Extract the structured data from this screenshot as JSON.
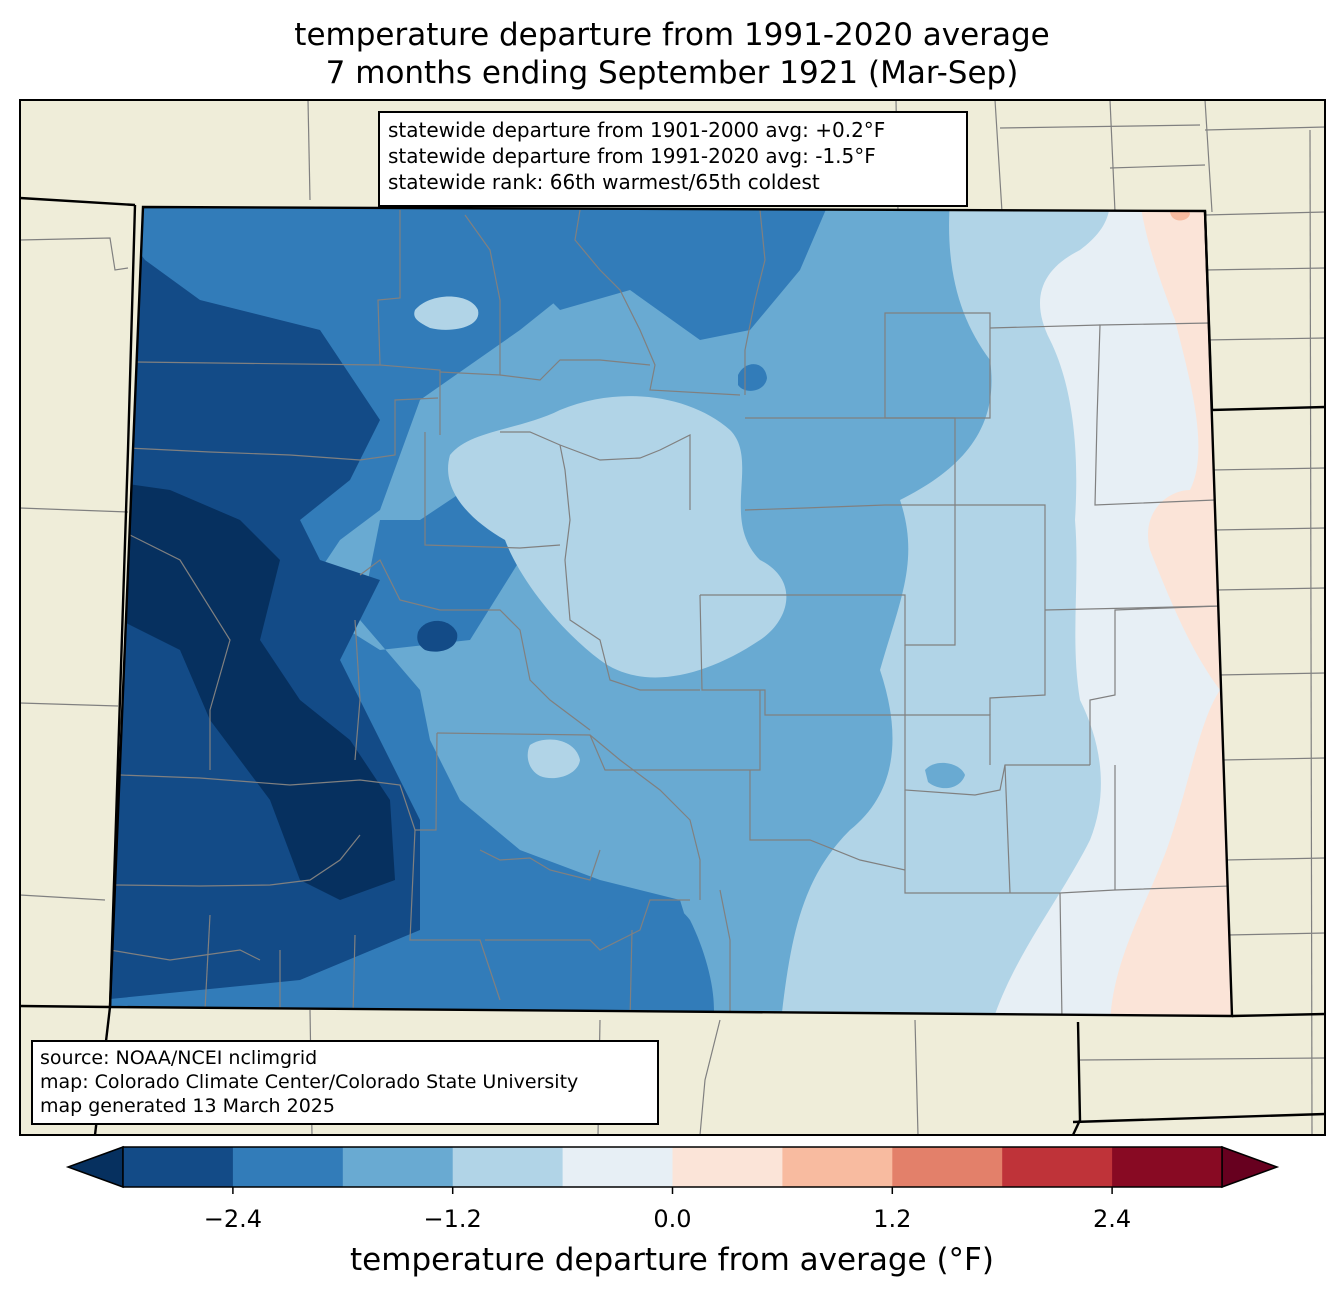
{
  "title": {
    "line1": "temperature departure from 1991-2020 average",
    "line2": "7 months ending September 1921 (Mar-Sep)"
  },
  "stats_box": {
    "line1": "statewide departure from 1901-2000 avg: +0.2°F",
    "line2": "statewide departure from 1991-2020 avg: -1.5°F",
    "line3": "statewide rank: 66th warmest/65th coldest"
  },
  "source_box": {
    "line1": "source: NOAA/NCEI nclimgrid",
    "line2": "map: Colorado Climate Center/Colorado State University",
    "line3": "map generated 13 March 2025"
  },
  "colorbar": {
    "label": "temperature departure from average (°F)",
    "bounds": [
      -3.0,
      -2.4,
      -1.8,
      -1.2,
      -0.6,
      0.0,
      0.6,
      1.2,
      1.8,
      2.4,
      3.0
    ],
    "colors": [
      "#134b87",
      "#327cb9",
      "#69aad2",
      "#b1d4e7",
      "#e7eff5",
      "#fbe4d8",
      "#f8bba0",
      "#e3806a",
      "#bf3339",
      "#880a23"
    ],
    "under_color": "#06305f",
    "over_color": "#67001f",
    "tick_values": [
      -2.4,
      -1.2,
      0.0,
      1.2,
      2.4
    ],
    "tick_labels": [
      "−2.4",
      "−1.2",
      "0.0",
      "1.2",
      "2.4"
    ]
  },
  "map": {
    "background_color": "#efedd9",
    "state_border_color": "#000000",
    "county_line_color": "#808080"
  }
}
